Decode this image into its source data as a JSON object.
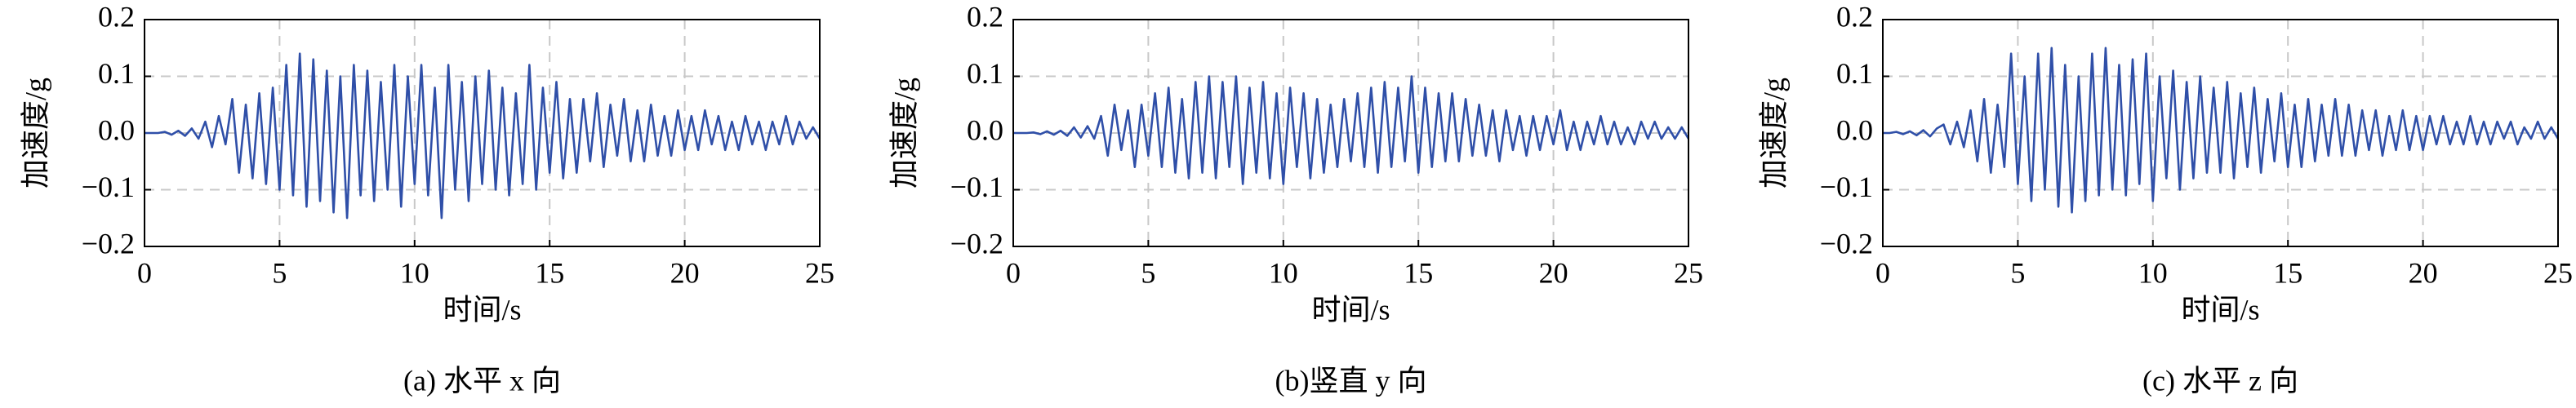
{
  "chart_data": [
    {
      "type": "line",
      "ylabel": "加速度/g",
      "xlabel": "时间/s",
      "caption": "(a) 水平 x 向",
      "color": "#2f4fa8",
      "grid": true,
      "xlim": [
        0,
        25
      ],
      "xticks": [
        0,
        5,
        10,
        15,
        20,
        25
      ],
      "ylim": [
        -0.2,
        0.2
      ],
      "yticks": [
        0.2,
        0.1,
        {
          "value": 0,
          "label": "0.0"
        },
        {
          "value": -0.1,
          "label": "−0.1"
        },
        {
          "value": -0.2,
          "label": "−0.2"
        }
      ],
      "x": [
        0,
        0.25,
        0.5,
        0.75,
        1,
        1.25,
        1.5,
        1.75,
        2,
        2.25,
        2.5,
        2.75,
        3,
        3.25,
        3.5,
        3.75,
        4,
        4.25,
        4.5,
        4.75,
        5,
        5.25,
        5.5,
        5.75,
        6,
        6.25,
        6.5,
        6.75,
        7,
        7.25,
        7.5,
        7.75,
        8,
        8.25,
        8.5,
        8.75,
        9,
        9.25,
        9.5,
        9.75,
        10,
        10.25,
        10.5,
        10.75,
        11,
        11.25,
        11.5,
        11.75,
        12,
        12.25,
        12.5,
        12.75,
        13,
        13.25,
        13.5,
        13.75,
        14,
        14.25,
        14.5,
        14.75,
        15,
        15.25,
        15.5,
        15.75,
        16,
        16.25,
        16.5,
        16.75,
        17,
        17.25,
        17.5,
        17.75,
        18,
        18.25,
        18.5,
        18.75,
        19,
        19.25,
        19.5,
        19.75,
        20,
        20.25,
        20.5,
        20.75,
        21,
        21.25,
        21.5,
        21.75,
        22,
        22.25,
        22.5,
        22.75,
        23,
        23.25,
        23.5,
        23.75,
        24,
        24.25,
        24.5,
        24.75,
        25
      ],
      "values": [
        0,
        0,
        0,
        0.002,
        -0.003,
        0.004,
        -0.005,
        0.008,
        -0.01,
        0.02,
        -0.025,
        0.03,
        -0.02,
        0.06,
        -0.07,
        0.05,
        -0.08,
        0.07,
        -0.09,
        0.08,
        -0.1,
        0.12,
        -0.11,
        0.14,
        -0.13,
        0.13,
        -0.12,
        0.11,
        -0.14,
        0.1,
        -0.15,
        0.12,
        -0.11,
        0.11,
        -0.12,
        0.09,
        -0.1,
        0.12,
        -0.13,
        0.1,
        -0.09,
        0.12,
        -0.11,
        0.08,
        -0.15,
        0.12,
        -0.1,
        0.09,
        -0.12,
        0.1,
        -0.09,
        0.11,
        -0.1,
        0.08,
        -0.11,
        0.07,
        -0.09,
        0.12,
        -0.1,
        0.08,
        -0.07,
        0.09,
        -0.08,
        0.06,
        -0.07,
        0.06,
        -0.05,
        0.07,
        -0.06,
        0.05,
        -0.04,
        0.06,
        -0.05,
        0.04,
        -0.05,
        0.05,
        -0.04,
        0.03,
        -0.04,
        0.04,
        -0.03,
        0.03,
        -0.03,
        0.04,
        -0.02,
        0.03,
        -0.03,
        0.02,
        -0.03,
        0.03,
        -0.02,
        0.02,
        -0.03,
        0.02,
        -0.02,
        0.03,
        -0.02,
        0.02,
        -0.01,
        0.01,
        -0.01
      ]
    },
    {
      "type": "line",
      "ylabel": "加速度/g",
      "xlabel": "时间/s",
      "caption": "(b)竖直 y 向",
      "color": "#2f4fa8",
      "grid": true,
      "xlim": [
        0,
        25
      ],
      "xticks": [
        0,
        5,
        10,
        15,
        20,
        25
      ],
      "ylim": [
        -0.2,
        0.2
      ],
      "yticks": [
        0.2,
        0.1,
        {
          "value": 0,
          "label": "0.0"
        },
        {
          "value": -0.1,
          "label": "−0.1"
        },
        {
          "value": -0.2,
          "label": "−0.2"
        }
      ],
      "x": [
        0,
        0.25,
        0.5,
        0.75,
        1,
        1.25,
        1.5,
        1.75,
        2,
        2.25,
        2.5,
        2.75,
        3,
        3.25,
        3.5,
        3.75,
        4,
        4.25,
        4.5,
        4.75,
        5,
        5.25,
        5.5,
        5.75,
        6,
        6.25,
        6.5,
        6.75,
        7,
        7.25,
        7.5,
        7.75,
        8,
        8.25,
        8.5,
        8.75,
        9,
        9.25,
        9.5,
        9.75,
        10,
        10.25,
        10.5,
        10.75,
        11,
        11.25,
        11.5,
        11.75,
        12,
        12.25,
        12.5,
        12.75,
        13,
        13.25,
        13.5,
        13.75,
        14,
        14.25,
        14.5,
        14.75,
        15,
        15.25,
        15.5,
        15.75,
        16,
        16.25,
        16.5,
        16.75,
        17,
        17.25,
        17.5,
        17.75,
        18,
        18.25,
        18.5,
        18.75,
        19,
        19.25,
        19.5,
        19.75,
        20,
        20.25,
        20.5,
        20.75,
        21,
        21.25,
        21.5,
        21.75,
        22,
        22.25,
        22.5,
        22.75,
        23,
        23.25,
        23.5,
        23.75,
        24,
        24.25,
        24.5,
        24.75,
        25
      ],
      "values": [
        0,
        0,
        0,
        0.001,
        -0.002,
        0.003,
        -0.003,
        0.004,
        -0.005,
        0.01,
        -0.008,
        0.012,
        -0.01,
        0.03,
        -0.04,
        0.05,
        -0.03,
        0.04,
        -0.06,
        0.05,
        -0.04,
        0.07,
        -0.06,
        0.08,
        -0.07,
        0.06,
        -0.08,
        0.09,
        -0.07,
        0.1,
        -0.08,
        0.09,
        -0.06,
        0.1,
        -0.09,
        0.08,
        -0.07,
        0.09,
        -0.08,
        0.07,
        -0.09,
        0.08,
        -0.06,
        0.07,
        -0.08,
        0.06,
        -0.07,
        0.05,
        -0.06,
        0.06,
        -0.05,
        0.07,
        -0.06,
        0.08,
        -0.07,
        0.09,
        -0.06,
        0.08,
        -0.05,
        0.1,
        -0.07,
        0.08,
        -0.06,
        0.07,
        -0.05,
        0.07,
        -0.05,
        0.06,
        -0.04,
        0.05,
        -0.04,
        0.04,
        -0.05,
        0.04,
        -0.03,
        0.03,
        -0.04,
        0.03,
        -0.03,
        0.03,
        -0.02,
        0.04,
        -0.03,
        0.02,
        -0.03,
        0.02,
        -0.02,
        0.03,
        -0.02,
        0.02,
        -0.02,
        0.01,
        -0.02,
        0.02,
        -0.01,
        0.02,
        -0.01,
        0.01,
        -0.01,
        0.01,
        -0.01
      ]
    },
    {
      "type": "line",
      "ylabel": "加速度/g",
      "xlabel": "时间/s",
      "caption": "(c) 水平 z 向",
      "color": "#2f4fa8",
      "grid": true,
      "xlim": [
        0,
        25
      ],
      "xticks": [
        0,
        5,
        10,
        15,
        20,
        25
      ],
      "ylim": [
        -0.2,
        0.2
      ],
      "yticks": [
        0.2,
        0.1,
        {
          "value": 0,
          "label": "0.0"
        },
        {
          "value": -0.1,
          "label": "−0.1"
        },
        {
          "value": -0.2,
          "label": "−0.2"
        }
      ],
      "x": [
        0,
        0.25,
        0.5,
        0.75,
        1,
        1.25,
        1.5,
        1.75,
        2,
        2.25,
        2.5,
        2.75,
        3,
        3.25,
        3.5,
        3.75,
        4,
        4.25,
        4.5,
        4.75,
        5,
        5.25,
        5.5,
        5.75,
        6,
        6.25,
        6.5,
        6.75,
        7,
        7.25,
        7.5,
        7.75,
        8,
        8.25,
        8.5,
        8.75,
        9,
        9.25,
        9.5,
        9.75,
        10,
        10.25,
        10.5,
        10.75,
        11,
        11.25,
        11.5,
        11.75,
        12,
        12.25,
        12.5,
        12.75,
        13,
        13.25,
        13.5,
        13.75,
        14,
        14.25,
        14.5,
        14.75,
        15,
        15.25,
        15.5,
        15.75,
        16,
        16.25,
        16.5,
        16.75,
        17,
        17.25,
        17.5,
        17.75,
        18,
        18.25,
        18.5,
        18.75,
        19,
        19.25,
        19.5,
        19.75,
        20,
        20.25,
        20.5,
        20.75,
        21,
        21.25,
        21.5,
        21.75,
        22,
        22.25,
        22.5,
        22.75,
        23,
        23.25,
        23.5,
        23.75,
        24,
        24.25,
        24.5,
        24.75,
        25
      ],
      "values": [
        0,
        0,
        0.002,
        -0.002,
        0.003,
        -0.004,
        0.005,
        -0.006,
        0.008,
        0.015,
        -0.02,
        0.02,
        -0.025,
        0.04,
        -0.05,
        0.06,
        -0.07,
        0.05,
        -0.06,
        0.14,
        -0.09,
        0.1,
        -0.12,
        0.14,
        -0.1,
        0.15,
        -0.13,
        0.12,
        -0.14,
        0.1,
        -0.12,
        0.14,
        -0.11,
        0.15,
        -0.1,
        0.12,
        -0.11,
        0.13,
        -0.09,
        0.14,
        -0.12,
        0.1,
        -0.08,
        0.11,
        -0.1,
        0.09,
        -0.08,
        0.1,
        -0.07,
        0.08,
        -0.07,
        0.09,
        -0.08,
        0.07,
        -0.06,
        0.08,
        -0.07,
        0.06,
        -0.05,
        0.07,
        -0.06,
        0.05,
        -0.06,
        0.06,
        -0.05,
        0.05,
        -0.04,
        0.06,
        -0.04,
        0.05,
        -0.04,
        0.04,
        -0.03,
        0.04,
        -0.04,
        0.03,
        -0.03,
        0.04,
        -0.03,
        0.03,
        -0.03,
        0.03,
        -0.02,
        0.03,
        -0.02,
        0.02,
        -0.02,
        0.03,
        -0.02,
        0.02,
        -0.02,
        0.02,
        -0.01,
        0.02,
        -0.02,
        0.01,
        -0.01,
        0.02,
        -0.01,
        0.01,
        -0.01
      ]
    }
  ]
}
